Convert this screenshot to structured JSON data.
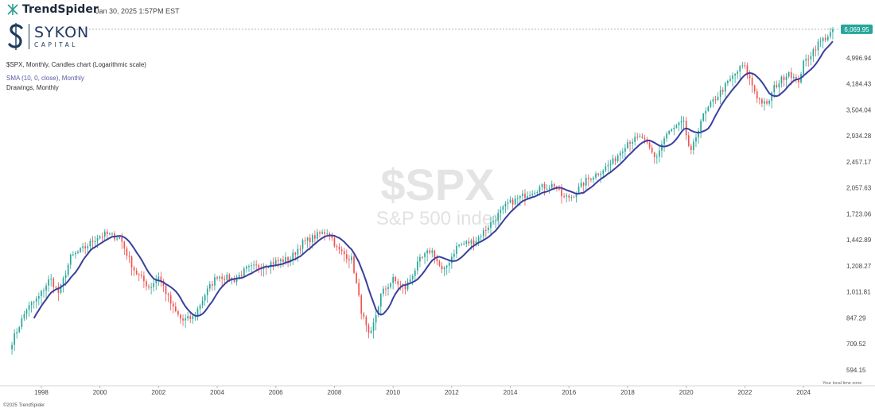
{
  "header": {
    "brand": "TrendSpider",
    "datetime": "Jan 30, 2025 1:57PM EST"
  },
  "logo": {
    "name": "SYKON",
    "sub": "CAPITAL"
  },
  "meta": {
    "title": "$SPX, Monthly, Candles chart (Logarithmic scale)",
    "sma": "SMA (10, 0, close), Monthly",
    "drawings": "Drawings, Monthly"
  },
  "watermark": {
    "symbol": "$SPX",
    "name": "S&P 500 index"
  },
  "footer": "©2025 TrendSpider",
  "timezone_note": "Your local time zone",
  "colors": {
    "up": "#26a69a",
    "down": "#ef5350",
    "sma": "#3a3f9e",
    "last_price_bg": "#26a69a"
  },
  "chart_data": {
    "type": "candlestick",
    "scale": "log",
    "x_ticks": [
      "1998",
      "2000",
      "2002",
      "2004",
      "2006",
      "2008",
      "2010",
      "2012",
      "2014",
      "2016",
      "2018",
      "2020",
      "2022",
      "2024"
    ],
    "y_ticks": [
      "594.15",
      "709.52",
      "847.29",
      "1,011.81",
      "1,208.27",
      "1,442.89",
      "1,723.06",
      "2,057.63",
      "2,457.17",
      "2,934.28",
      "3,504.04",
      "4,184.43",
      "4,996.94"
    ],
    "last_price_label": "6,069.95",
    "last_price": 6069.95,
    "ylim": [
      550,
      6300
    ],
    "xlim": [
      1996.7,
      2025.3
    ],
    "close_anchors": [
      [
        1997.0,
        720
      ],
      [
        1997.5,
        900
      ],
      [
        1997.9,
        970
      ],
      [
        1998.3,
        1110
      ],
      [
        1998.6,
        1000
      ],
      [
        1999.0,
        1280
      ],
      [
        1999.5,
        1370
      ],
      [
        1999.9,
        1470
      ],
      [
        2000.2,
        1500
      ],
      [
        2000.7,
        1460
      ],
      [
        2000.9,
        1320
      ],
      [
        2001.2,
        1160
      ],
      [
        2001.7,
        1040
      ],
      [
        2002.0,
        1130
      ],
      [
        2002.5,
        900
      ],
      [
        2002.8,
        830
      ],
      [
        2003.2,
        850
      ],
      [
        2003.6,
        1000
      ],
      [
        2004.0,
        1130
      ],
      [
        2004.6,
        1100
      ],
      [
        2005.0,
        1180
      ],
      [
        2005.8,
        1230
      ],
      [
        2006.5,
        1270
      ],
      [
        2006.9,
        1410
      ],
      [
        2007.5,
        1500
      ],
      [
        2007.8,
        1530
      ],
      [
        2008.1,
        1350
      ],
      [
        2008.6,
        1260
      ],
      [
        2008.9,
        900
      ],
      [
        2009.2,
        730
      ],
      [
        2009.6,
        1000
      ],
      [
        2010.0,
        1100
      ],
      [
        2010.4,
        1030
      ],
      [
        2010.9,
        1250
      ],
      [
        2011.3,
        1350
      ],
      [
        2011.7,
        1150
      ],
      [
        2012.2,
        1390
      ],
      [
        2012.8,
        1430
      ],
      [
        2013.5,
        1680
      ],
      [
        2013.9,
        1840
      ],
      [
        2014.5,
        1960
      ],
      [
        2015.0,
        2060
      ],
      [
        2015.5,
        2100
      ],
      [
        2015.8,
        1920
      ],
      [
        2016.1,
        1940
      ],
      [
        2016.6,
        2170
      ],
      [
        2017.0,
        2280
      ],
      [
        2017.5,
        2460
      ],
      [
        2018.0,
        2820
      ],
      [
        2018.5,
        2900
      ],
      [
        2018.95,
        2500
      ],
      [
        2019.3,
        2950
      ],
      [
        2019.9,
        3230
      ],
      [
        2020.15,
        2580
      ],
      [
        2020.5,
        3270
      ],
      [
        2020.9,
        3700
      ],
      [
        2021.5,
        4300
      ],
      [
        2021.95,
        4770
      ],
      [
        2022.45,
        3780
      ],
      [
        2022.75,
        3600
      ],
      [
        2023.0,
        4080
      ],
      [
        2023.5,
        4550
      ],
      [
        2023.8,
        4190
      ],
      [
        2024.0,
        4800
      ],
      [
        2024.5,
        5500
      ],
      [
        2024.9,
        5880
      ],
      [
        2025.08,
        6070
      ]
    ],
    "sma_period": 10
  }
}
